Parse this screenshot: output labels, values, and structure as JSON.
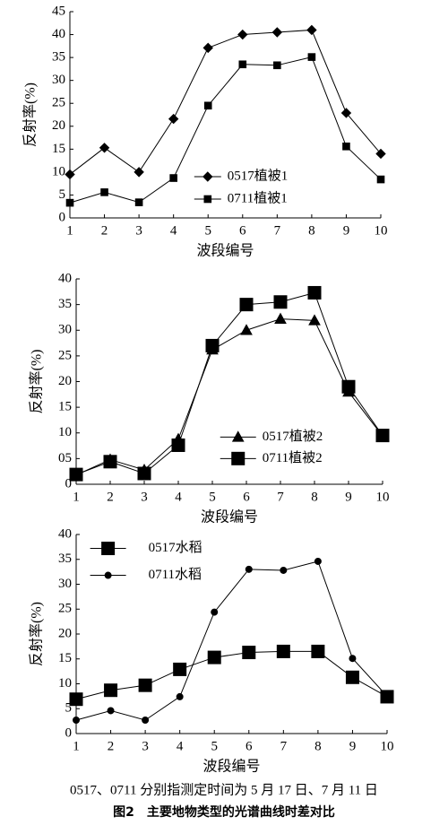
{
  "chart_data": [
    {
      "type": "line",
      "xlabel": "波段编号",
      "ylabel": "反射率(%)",
      "x": [
        1,
        2,
        3,
        4,
        5,
        6,
        7,
        8,
        9,
        10
      ],
      "xlim": [
        1,
        10
      ],
      "xticks": [
        1,
        2,
        3,
        4,
        5,
        6,
        7,
        8,
        9,
        10
      ],
      "ylim": [
        0,
        45
      ],
      "yticks": [
        0,
        5,
        10,
        15,
        20,
        25,
        30,
        35,
        40,
        45
      ],
      "legend": "lower center",
      "series": [
        {
          "name": "0517植被1",
          "color": "#000000",
          "marker": "diamond",
          "values": [
            9.5,
            15.3,
            10.0,
            21.6,
            37.1,
            40.0,
            40.5,
            41.0,
            22.9,
            14.0
          ]
        },
        {
          "name": "0711植被1",
          "color": "#000000",
          "marker": "square",
          "values": [
            3.3,
            5.6,
            3.4,
            8.7,
            24.5,
            33.5,
            33.3,
            35.1,
            15.6,
            8.4
          ]
        }
      ]
    },
    {
      "type": "line",
      "xlabel": "波段编号",
      "ylabel": "反射率(%)",
      "x": [
        1,
        2,
        3,
        4,
        5,
        6,
        7,
        8,
        9,
        10
      ],
      "xlim": [
        1,
        10
      ],
      "xticks": [
        1,
        2,
        3,
        4,
        5,
        6,
        7,
        8,
        9,
        10
      ],
      "ylim": [
        0,
        40
      ],
      "yticks": [
        0,
        {
          "value": 5,
          "label": "05"
        },
        10,
        15,
        20,
        25,
        30,
        35,
        40
      ],
      "legend": "lower right",
      "series": [
        {
          "name": "0517植被2",
          "color": "#000000",
          "marker": "triangle",
          "values": [
            1.8,
            4.8,
            2.8,
            8.8,
            26.2,
            30.0,
            32.2,
            31.9,
            18.0,
            9.4
          ]
        },
        {
          "name": "0711植被2",
          "color": "#000000",
          "marker": "large-square",
          "values": [
            1.9,
            4.4,
            2.1,
            7.6,
            27.0,
            35.0,
            35.5,
            37.3,
            19.0,
            9.5
          ]
        }
      ]
    },
    {
      "type": "line",
      "xlabel": "波段编号",
      "ylabel": "反射率(%)",
      "x": [
        1,
        2,
        3,
        4,
        5,
        6,
        7,
        8,
        9,
        10
      ],
      "xlim": [
        1,
        10
      ],
      "xticks": [
        1,
        2,
        3,
        4,
        5,
        6,
        7,
        8,
        9,
        10
      ],
      "ylim": [
        0,
        40
      ],
      "yticks": [
        0,
        5,
        10,
        15,
        20,
        25,
        30,
        35,
        40
      ],
      "legend": "upper left",
      "series": [
        {
          "name": "0517水稻",
          "color": "#000000",
          "marker": "large-square",
          "values": [
            6.9,
            8.7,
            9.7,
            12.9,
            15.3,
            16.3,
            16.5,
            16.5,
            11.3,
            7.4
          ]
        },
        {
          "name": "0711水稻",
          "color": "#000000",
          "marker": "circle",
          "values": [
            2.7,
            4.6,
            2.7,
            7.4,
            24.4,
            33.0,
            32.8,
            34.6,
            15.1,
            7.5
          ]
        }
      ]
    }
  ],
  "caption": "0517、0711 分别指测定时间为 5 月 17 日、7 月 11 日",
  "figure_title": "图2　主要地物类型的光谱曲线时差对比"
}
